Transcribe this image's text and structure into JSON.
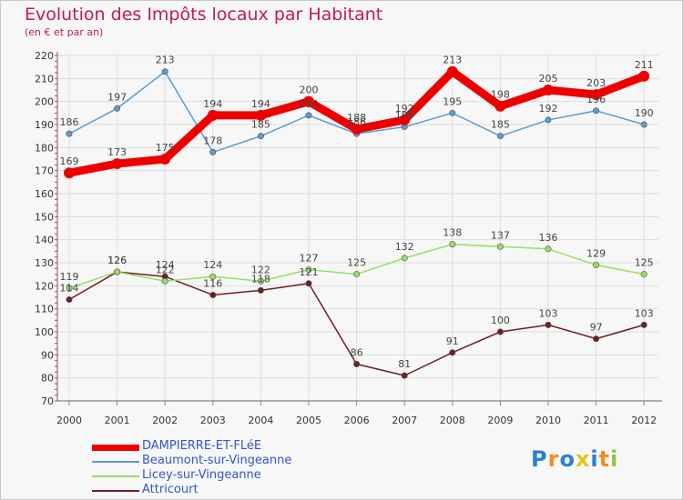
{
  "header": {
    "title": "Evolution des Impôts locaux par Habitant",
    "subtitle": "(en € et par an)"
  },
  "logo": {
    "text": "Proxiti"
  },
  "chart_data": {
    "type": "line",
    "title": "Evolution des Impôts locaux par Habitant",
    "subtitle": "(en € et par an)",
    "xlabel": "",
    "ylabel": "",
    "ylim": [
      70,
      220
    ],
    "yticks": [
      70,
      80,
      90,
      100,
      110,
      120,
      130,
      140,
      150,
      160,
      170,
      180,
      190,
      200,
      210,
      220
    ],
    "grid": true,
    "legend_position": "bottom-left",
    "categories": [
      "2000",
      "2001",
      "2002",
      "2003",
      "2004",
      "2005",
      "2006",
      "2007",
      "2008",
      "2009",
      "2010",
      "2011",
      "2012"
    ],
    "series": [
      {
        "name": "DAMPIERRE-ET-FLéE",
        "color": "#ee0000",
        "width": "thick",
        "values": [
          169,
          173,
          175,
          194,
          194,
          200,
          188,
          192,
          213,
          198,
          205,
          203,
          211
        ]
      },
      {
        "name": "Beaumont-sur-Vingeanne",
        "color": "#5b9bd5",
        "width": "thin",
        "values": [
          186,
          197,
          213,
          178,
          185,
          194,
          186,
          189,
          195,
          185,
          192,
          196,
          190
        ]
      },
      {
        "name": "Licey-sur-Vingeanne",
        "color": "#99dd66",
        "width": "thin",
        "values": [
          119,
          126,
          122,
          124,
          122,
          127,
          125,
          132,
          138,
          137,
          136,
          129,
          125
        ]
      },
      {
        "name": "Attricourt",
        "color": "#6e1e24",
        "width": "thin",
        "values": [
          114,
          126,
          124,
          116,
          118,
          121,
          86,
          81,
          91,
          100,
          103,
          97,
          103
        ]
      }
    ]
  }
}
